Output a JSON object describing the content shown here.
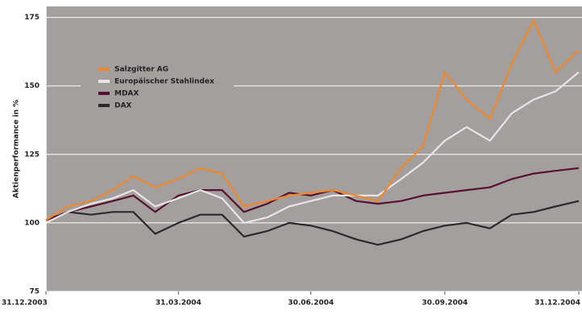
{
  "chart_data": {
    "type": "line",
    "y_label": "Aktienperformance in %",
    "x": [
      "31.12.2003",
      "15.01.2004",
      "31.01.2004",
      "15.02.2004",
      "29.02.2004",
      "15.03.2004",
      "31.03.2004",
      "15.04.2004",
      "30.04.2004",
      "15.05.2004",
      "31.05.2004",
      "15.06.2004",
      "30.06.2004",
      "15.07.2004",
      "31.07.2004",
      "15.08.2004",
      "31.08.2004",
      "15.09.2004",
      "30.09.2004",
      "15.10.2004",
      "31.10.2004",
      "15.11.2004",
      "30.11.2004",
      "15.12.2004",
      "31.12.2004"
    ],
    "series": [
      {
        "name": "Salzgitter AG",
        "color": "#f0882a",
        "values": [
          101,
          106,
          108,
          112,
          117,
          113,
          116,
          120,
          118,
          106,
          108,
          110,
          111,
          112,
          110,
          108,
          120,
          128,
          155,
          145,
          138,
          158,
          174,
          155,
          163
        ]
      },
      {
        "name": "Europäischer Stahlindex",
        "color": "#e6e6e6",
        "values": [
          100,
          104,
          107,
          109,
          112,
          106,
          109,
          112,
          109,
          100,
          102,
          106,
          108,
          110,
          110,
          110,
          116,
          122,
          130,
          135,
          130,
          140,
          145,
          148,
          155
        ]
      },
      {
        "name": "MDAX",
        "color": "#5a1030",
        "values": [
          101,
          104,
          106,
          108,
          110,
          104,
          110,
          112,
          112,
          104,
          107,
          111,
          110,
          112,
          108,
          107,
          108,
          110,
          111,
          112,
          113,
          116,
          118,
          119,
          120
        ]
      },
      {
        "name": "DAX",
        "color": "#2a2a2a",
        "values": [
          101,
          104,
          103,
          104,
          104,
          96,
          100,
          103,
          103,
          95,
          97,
          100,
          99,
          97,
          94,
          92,
          94,
          97,
          99,
          100,
          98,
          103,
          104,
          106,
          108
        ]
      }
    ],
    "ylim": [
      75,
      179
    ],
    "yticks": [
      75,
      100,
      125,
      150,
      175
    ],
    "xticks": [
      "31.12.2003",
      "31.03.2004",
      "30.06.2004",
      "30.09.2004",
      "31.12.2004"
    ],
    "grid": true,
    "legend": "upper left"
  }
}
